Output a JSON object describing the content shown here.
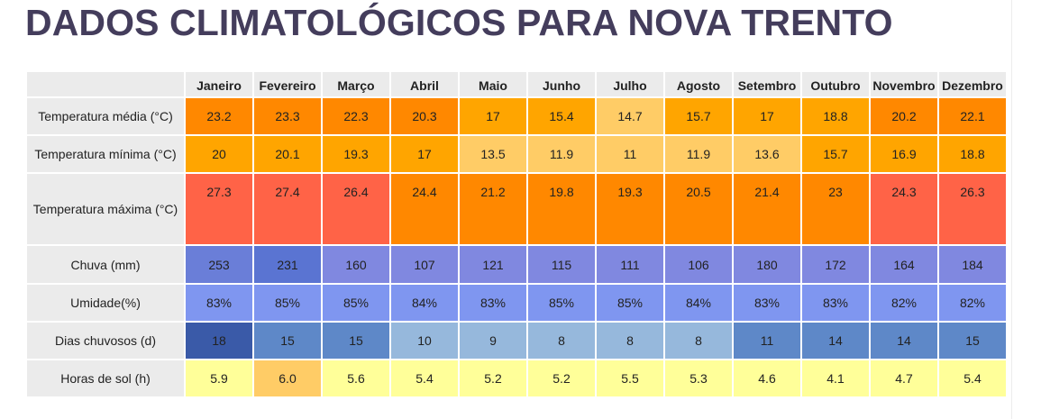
{
  "title": "DADOS CLIMATOLÓGICOS PARA NOVA TRENTO",
  "months": [
    "Janeiro",
    "Fevereiro",
    "Março",
    "Abril",
    "Maio",
    "Junho",
    "Julho",
    "Agosto",
    "Setembro",
    "Outubro",
    "Novembro",
    "Dezembro"
  ],
  "rows": [
    {
      "label": "Temperatura média (°C)",
      "values": [
        "23.2",
        "23.3",
        "22.3",
        "20.3",
        "17",
        "15.4",
        "14.7",
        "15.7",
        "17",
        "18.8",
        "20.2",
        "22.1"
      ]
    },
    {
      "label": "Temperatura mínima (°C)",
      "values": [
        "20",
        "20.1",
        "19.3",
        "17",
        "13.5",
        "11.9",
        "11",
        "11.9",
        "13.6",
        "15.7",
        "16.9",
        "18.8"
      ]
    },
    {
      "label": "Temperatura máxima (°C)",
      "values": [
        "27.3",
        "27.4",
        "26.4",
        "24.4",
        "21.2",
        "19.8",
        "19.3",
        "20.5",
        "21.4",
        "23",
        "24.3",
        "26.3"
      ]
    },
    {
      "label": "Chuva (mm)",
      "values": [
        "253",
        "231",
        "160",
        "107",
        "121",
        "115",
        "111",
        "106",
        "180",
        "172",
        "164",
        "184"
      ]
    },
    {
      "label": "Umidade(%)",
      "values": [
        "83%",
        "85%",
        "85%",
        "84%",
        "83%",
        "85%",
        "85%",
        "84%",
        "83%",
        "83%",
        "82%",
        "82%"
      ]
    },
    {
      "label": "Dias chuvosos (d)",
      "values": [
        "18",
        "15",
        "15",
        "10",
        "9",
        "8",
        "8",
        "8",
        "11",
        "14",
        "14",
        "15"
      ]
    },
    {
      "label": "Horas de sol (h)",
      "values": [
        "5.9",
        "6.0",
        "5.6",
        "5.4",
        "5.2",
        "5.2",
        "5.5",
        "5.3",
        "4.6",
        "4.1",
        "4.7",
        "5.4"
      ]
    }
  ],
  "colors": {
    "title": "#443d5c",
    "header_bg": "#ebebeb",
    "orange_dark": "#ff8800",
    "orange": "#ffa500",
    "orange_light": "#ffcc66",
    "red": "#ff6347",
    "navy": "#3a5aa8",
    "yellow_pale": "#ffff99"
  }
}
